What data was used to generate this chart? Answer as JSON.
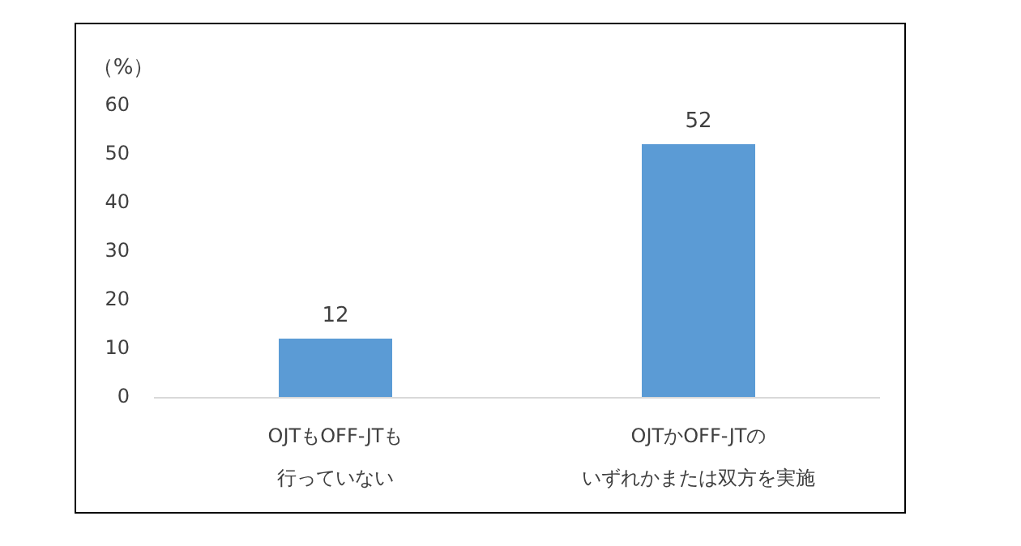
{
  "chart_data": {
    "type": "bar",
    "ylabel": "（%）",
    "categories": [
      "OJTもOFF-JTも行っていない",
      "OJTかOFF-JTのいずれかまたは双方を実施"
    ],
    "values": [
      12,
      52
    ],
    "color": "#5b9bd5",
    "ylim": [
      0,
      60
    ],
    "yticks": [
      0,
      10,
      20,
      30,
      40,
      50,
      60
    ],
    "grid": false,
    "data_labels": true
  }
}
